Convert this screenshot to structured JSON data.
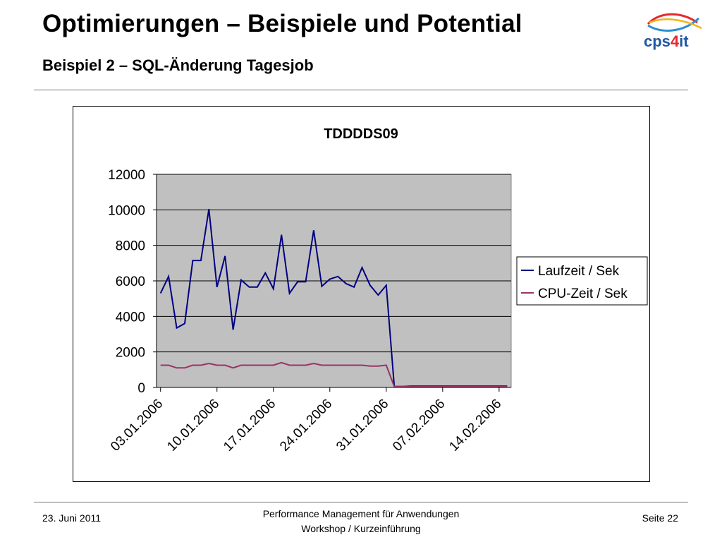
{
  "header": {
    "title": "Optimierungen – Beispiele und Potential",
    "subtitle": "Beispiel 2 – SQL-Änderung Tagesjob"
  },
  "logo": {
    "text_a": "cps",
    "text_b": "4",
    "text_c": "it",
    "colors": [
      "#e8282e",
      "#2a8fd0",
      "#f2b31b",
      "#1f57a5"
    ]
  },
  "chart_data": {
    "type": "line",
    "title": "TDDDDS09",
    "ylim": [
      0,
      12000
    ],
    "yticks": [
      0,
      2000,
      4000,
      6000,
      8000,
      10000,
      12000
    ],
    "xtick_labels": [
      "03.01.2006",
      "10.01.2006",
      "17.01.2006",
      "24.01.2006",
      "31.01.2006",
      "07.02.2006",
      "14.02.2006"
    ],
    "xtick_index": [
      0,
      7,
      14,
      21,
      28,
      35,
      42
    ],
    "grid": true,
    "legend": "right",
    "series": [
      {
        "name": "Laufzeit / Sek",
        "color": "#000080",
        "values": [
          5300,
          6250,
          3350,
          3600,
          7150,
          7150,
          10050,
          5650,
          7400,
          3250,
          6050,
          5650,
          5650,
          6450,
          5550,
          8600,
          5300,
          5950,
          5950,
          8850,
          5700,
          6100,
          6250,
          5850,
          5650,
          6750,
          5750,
          5200,
          5750,
          50,
          50,
          80,
          80,
          80,
          80,
          80,
          80,
          80,
          80,
          80,
          80,
          80,
          80,
          80
        ]
      },
      {
        "name": "CPU-Zeit / Sek",
        "color": "#993366",
        "values": [
          1250,
          1250,
          1100,
          1100,
          1250,
          1250,
          1350,
          1250,
          1250,
          1100,
          1250,
          1250,
          1250,
          1250,
          1250,
          1400,
          1250,
          1250,
          1250,
          1350,
          1250,
          1250,
          1250,
          1250,
          1250,
          1250,
          1200,
          1200,
          1250,
          50,
          50,
          60,
          60,
          60,
          60,
          60,
          60,
          60,
          60,
          60,
          60,
          60,
          60,
          60
        ]
      }
    ]
  },
  "footer": {
    "date": "23. Juni 2011",
    "line1": "Performance Management für Anwendungen",
    "line2": "Workshop / Kurzeinführung",
    "page": "Seite 22"
  }
}
